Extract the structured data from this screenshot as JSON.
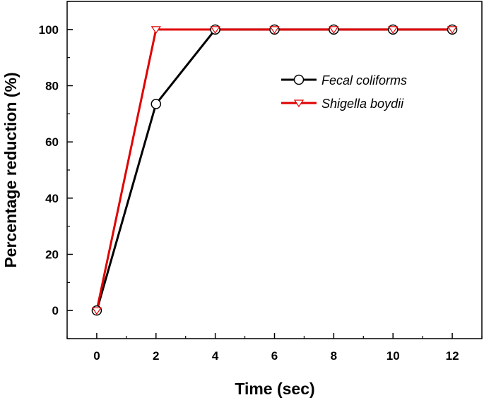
{
  "chart_data": {
    "type": "line",
    "xlabel": "Time (sec)",
    "ylabel": "Percentage reduction (%)",
    "x": [
      0,
      2,
      4,
      6,
      8,
      10,
      12
    ],
    "xlim": [
      -1,
      13
    ],
    "ylim": [
      -10,
      110
    ],
    "x_ticks": [
      0,
      2,
      4,
      6,
      8,
      10,
      12
    ],
    "y_ticks": [
      0,
      20,
      40,
      60,
      80,
      100
    ],
    "grid": false,
    "legend_position": "upper-right",
    "series": [
      {
        "name": "Fecal coliforms",
        "values": [
          0,
          73.5,
          100,
          100,
          100,
          100,
          100
        ],
        "color": "#000000",
        "marker": "circle"
      },
      {
        "name": "Shigella boydii",
        "values": [
          0,
          100,
          100,
          100,
          100,
          100,
          100
        ],
        "color": "#e00000",
        "marker": "triangle-down"
      }
    ]
  }
}
